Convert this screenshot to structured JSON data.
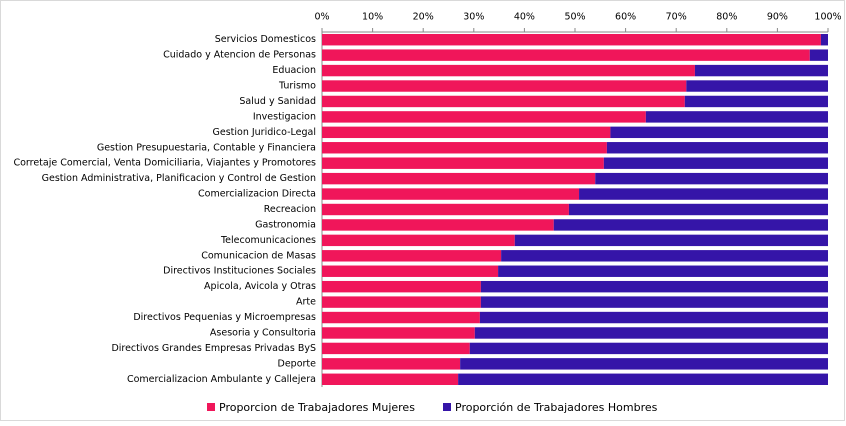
{
  "chart_data": {
    "type": "bar_stacked_horizontal",
    "categories": [
      "Servicios Domesticos",
      "Cuidado y Atencion de Personas",
      "Eduacion",
      "Turismo",
      "Salud y Sanidad",
      "Investigacion",
      "Gestion Juridico-Legal",
      "Gestion Presupuestaria, Contable y Financiera",
      "Corretaje Comercial, Venta Domiciliaria, Viajantes y Promotores",
      "Gestion Administrativa, Planificacion y Control de Gestion",
      "Comercializacion Directa",
      "Recreacion",
      "Gastronomia",
      "Telecomunicaciones",
      "Comunicacion de Masas",
      "Directivos Instituciones Sociales",
      "Apicola, Avicola y Otras",
      "Arte",
      "Directivos Pequenias y Microempresas",
      "Asesoria y Consultoria",
      "Directivos Grandes Empresas Privadas ByS",
      "Deporte",
      "Comercializacion Ambulante y Callejera"
    ],
    "series": [
      {
        "name": "Proporcion de Trabajadores Mujeres",
        "color": "#f0165a",
        "values": [
          98.6,
          96.4,
          73.7,
          72,
          71.7,
          64,
          57,
          56.3,
          55.7,
          54,
          50.8,
          48.8,
          45.8,
          38.1,
          35.4,
          34.8,
          31.4,
          31.4,
          31.2,
          30.2,
          29.2,
          27.3,
          26.9
        ]
      },
      {
        "name": "Proporción de Trabajadores Hombres",
        "color": "#3515a8",
        "values": [
          1.4,
          3.6,
          26.3,
          28,
          28.3,
          36,
          43,
          43.7,
          44.3,
          46,
          49.2,
          51.2,
          54.2,
          61.9,
          64.6,
          65.2,
          68.6,
          68.6,
          68.8,
          69.8,
          70.8,
          72.7,
          73.1
        ]
      }
    ],
    "xlim": [
      0,
      100
    ],
    "xticks": [
      {
        "value": 0,
        "label": "0%"
      },
      {
        "value": 10,
        "label": "10%"
      },
      {
        "value": 20,
        "label": "20%"
      },
      {
        "value": 30,
        "label": "30%"
      },
      {
        "value": 40,
        "label": "40%"
      },
      {
        "value": 50,
        "label": "50%"
      },
      {
        "value": 60,
        "label": "60%"
      },
      {
        "value": 70,
        "label": "70%"
      },
      {
        "value": 80,
        "label": "80%"
      },
      {
        "value": 90,
        "label": "90%"
      },
      {
        "value": 100,
        "label": "100%"
      }
    ],
    "legend": "bottom"
  }
}
